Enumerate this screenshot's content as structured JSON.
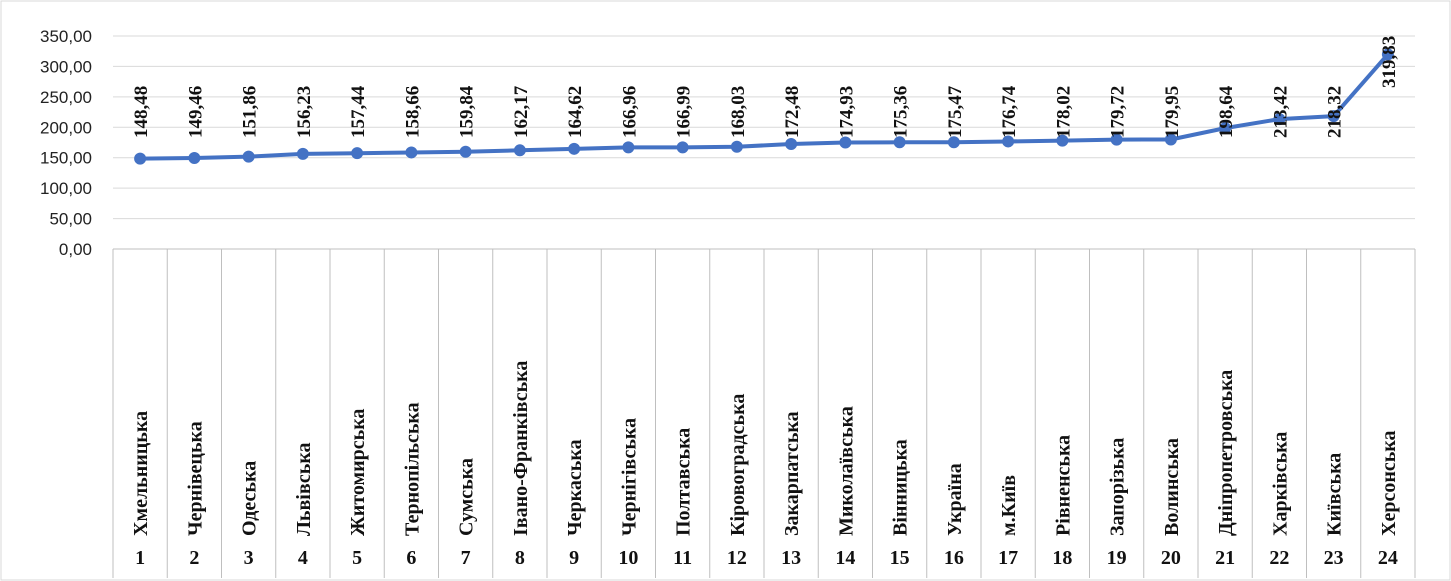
{
  "chart_data": {
    "type": "line",
    "title": "",
    "xlabel": "",
    "ylabel": "",
    "ylim": [
      0,
      350
    ],
    "yticks": [
      "0,00",
      "50,00",
      "100,00",
      "150,00",
      "200,00",
      "250,00",
      "300,00",
      "350,00"
    ],
    "grid": true,
    "legend": "none",
    "line_color": "#4472C4",
    "categories": [
      "Хмельницька",
      "Чернівецька",
      "Одеська",
      "Львівська",
      "Житомирська",
      "Тернопільська",
      "Сумська",
      "Івано-Франківська",
      "Черкаська",
      "Чернігівська",
      "Полтавська",
      "Кіровоградська",
      "Закарпатська",
      "Миколаївська",
      "Вінницька",
      "Україна",
      "м.Київ",
      "Рівненська",
      "Запорізька",
      "Волинська",
      "Дніпропетровська",
      "Харківська",
      "Київська",
      "Херсонська"
    ],
    "numbers": [
      "1",
      "2",
      "3",
      "4",
      "5",
      "6",
      "7",
      "8",
      "9",
      "10",
      "11",
      "12",
      "13",
      "14",
      "15",
      "16",
      "17",
      "18",
      "19",
      "20",
      "21",
      "22",
      "23",
      "24"
    ],
    "values": [
      148.48,
      149.46,
      151.86,
      156.23,
      157.44,
      158.66,
      159.84,
      162.17,
      164.62,
      166.96,
      166.99,
      168.03,
      172.48,
      174.93,
      175.36,
      175.47,
      176.74,
      178.02,
      179.72,
      179.95,
      198.64,
      213.42,
      218.32,
      319.83
    ],
    "labels": [
      "148,48",
      "149,46",
      "151,86",
      "156,23",
      "157,44",
      "158,66",
      "159,84",
      "162,17",
      "164,62",
      "166,96",
      "166,99",
      "168,03",
      "172,48",
      "174,93",
      "175,36",
      "175,47",
      "176,74",
      "178,02",
      "179,72",
      "179,95",
      "198,64",
      "213,42",
      "218,32",
      "319,83"
    ]
  }
}
